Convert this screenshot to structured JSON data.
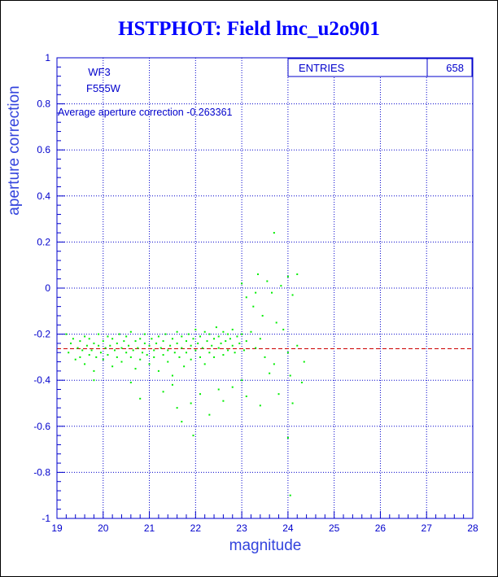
{
  "chart_data": {
    "type": "scatter",
    "title": "HSTPHOT: Field lmc_u2o901",
    "xlabel": "magnitude",
    "ylabel": "aperture correction",
    "xlim": [
      19,
      28
    ],
    "ylim": [
      -1,
      1
    ],
    "xticks": [
      "19",
      "20",
      "21",
      "22",
      "23",
      "24",
      "25",
      "26",
      "27",
      "28"
    ],
    "yticks": [
      "-1",
      "-0.8",
      "-0.6",
      "-0.4",
      "-0.2",
      "0",
      "0.2",
      "0.4",
      "0.6",
      "0.8",
      "1"
    ],
    "grid": true,
    "stats_box": {
      "label": "ENTRIES",
      "value": "658"
    },
    "camera": "WF3",
    "filter": "F555W",
    "average_text": "Average aperture correction -0.263361",
    "average_value": -0.263361,
    "series": [
      {
        "point_count": 658,
        "points": [
          [
            19.2,
            -0.2
          ],
          [
            19.25,
            -0.28
          ],
          [
            19.3,
            -0.24
          ],
          [
            19.35,
            -0.22
          ],
          [
            19.4,
            -0.31
          ],
          [
            19.45,
            -0.26
          ],
          [
            19.5,
            -0.23
          ],
          [
            19.5,
            -0.3
          ],
          [
            19.55,
            -0.27
          ],
          [
            19.6,
            -0.21
          ],
          [
            19.6,
            -0.33
          ],
          [
            19.65,
            -0.25
          ],
          [
            19.7,
            -0.29
          ],
          [
            19.7,
            -0.22
          ],
          [
            19.75,
            -0.27
          ],
          [
            19.8,
            -0.24
          ],
          [
            19.8,
            -0.36
          ],
          [
            19.85,
            -0.3
          ],
          [
            19.9,
            -0.25
          ],
          [
            19.9,
            -0.2
          ],
          [
            19.95,
            -0.28
          ],
          [
            20.0,
            -0.23
          ],
          [
            20.0,
            -0.31
          ],
          [
            20.05,
            -0.26
          ],
          [
            20.1,
            -0.21
          ],
          [
            20.1,
            -0.29
          ],
          [
            20.15,
            -0.25
          ],
          [
            20.2,
            -0.34
          ],
          [
            20.2,
            -0.22
          ],
          [
            20.25,
            -0.27
          ],
          [
            20.3,
            -0.24
          ],
          [
            20.3,
            -0.3
          ],
          [
            20.35,
            -0.2
          ],
          [
            20.4,
            -0.26
          ],
          [
            20.4,
            -0.32
          ],
          [
            20.45,
            -0.23
          ],
          [
            20.5,
            -0.28
          ],
          [
            20.5,
            -0.21
          ],
          [
            20.55,
            -0.25
          ],
          [
            20.6,
            -0.3
          ],
          [
            20.6,
            -0.19
          ],
          [
            20.65,
            -0.27
          ],
          [
            20.7,
            -0.23
          ],
          [
            20.7,
            -0.35
          ],
          [
            20.75,
            -0.26
          ],
          [
            20.8,
            -0.22
          ],
          [
            20.8,
            -0.31
          ],
          [
            20.85,
            -0.28
          ],
          [
            20.9,
            -0.24
          ],
          [
            20.9,
            -0.2
          ],
          [
            20.95,
            -0.29
          ],
          [
            21.0,
            -0.25
          ],
          [
            21.0,
            -0.33
          ],
          [
            21.05,
            -0.22
          ],
          [
            21.1,
            -0.27
          ],
          [
            21.1,
            -0.3
          ],
          [
            21.15,
            -0.24
          ],
          [
            21.2,
            -0.21
          ],
          [
            21.2,
            -0.36
          ],
          [
            21.25,
            -0.26
          ],
          [
            21.3,
            -0.29
          ],
          [
            21.3,
            -0.23
          ],
          [
            21.35,
            -0.2
          ],
          [
            21.4,
            -0.27
          ],
          [
            21.4,
            -0.32
          ],
          [
            21.45,
            -0.25
          ],
          [
            21.5,
            -0.22
          ],
          [
            21.5,
            -0.38
          ],
          [
            21.55,
            -0.28
          ],
          [
            21.6,
            -0.24
          ],
          [
            21.6,
            -0.19
          ],
          [
            21.65,
            -0.3
          ],
          [
            21.7,
            -0.26
          ],
          [
            21.7,
            -0.21
          ],
          [
            21.75,
            -0.34
          ],
          [
            21.8,
            -0.23
          ],
          [
            21.8,
            -0.28
          ],
          [
            21.85,
            -0.2
          ],
          [
            21.9,
            -0.25
          ],
          [
            21.9,
            -0.31
          ],
          [
            21.95,
            -0.22
          ],
          [
            22.0,
            -0.27
          ],
          [
            22.0,
            -0.18
          ],
          [
            22.05,
            -0.24
          ],
          [
            22.1,
            -0.3
          ],
          [
            22.1,
            -0.21
          ],
          [
            22.15,
            -0.26
          ],
          [
            22.2,
            -0.19
          ],
          [
            22.2,
            -0.33
          ],
          [
            22.25,
            -0.23
          ],
          [
            22.3,
            -0.28
          ],
          [
            22.3,
            -0.2
          ],
          [
            22.35,
            -0.25
          ],
          [
            22.4,
            -0.22
          ],
          [
            22.4,
            -0.3
          ],
          [
            22.45,
            -0.17
          ],
          [
            22.5,
            -0.26
          ],
          [
            22.5,
            -0.21
          ],
          [
            22.55,
            -0.24
          ],
          [
            22.6,
            -0.19
          ],
          [
            22.6,
            -0.29
          ],
          [
            22.65,
            -0.23
          ],
          [
            22.7,
            -0.2
          ],
          [
            22.7,
            -0.27
          ],
          [
            22.75,
            -0.22
          ],
          [
            22.8,
            -0.25
          ],
          [
            22.8,
            -0.18
          ],
          [
            22.85,
            -0.28
          ],
          [
            22.9,
            -0.21
          ],
          [
            22.95,
            -0.24
          ],
          [
            23.0,
            -0.2
          ],
          [
            23.05,
            -0.27
          ],
          [
            23.1,
            -0.23
          ],
          [
            23.2,
            -0.19
          ],
          [
            23.3,
            -0.26
          ],
          [
            23.4,
            -0.22
          ],
          [
            23.5,
            -0.3
          ],
          [
            19.8,
            -0.4
          ],
          [
            20.6,
            -0.41
          ],
          [
            20.8,
            -0.48
          ],
          [
            21.3,
            -0.45
          ],
          [
            21.5,
            -0.42
          ],
          [
            21.6,
            -0.52
          ],
          [
            21.7,
            -0.58
          ],
          [
            21.9,
            -0.5
          ],
          [
            21.95,
            -0.64
          ],
          [
            22.1,
            -0.46
          ],
          [
            22.3,
            -0.55
          ],
          [
            22.5,
            -0.44
          ],
          [
            22.6,
            -0.49
          ],
          [
            22.8,
            -0.43
          ],
          [
            23.0,
            -0.4
          ],
          [
            23.1,
            -0.47
          ],
          [
            23.4,
            -0.51
          ],
          [
            23.6,
            -0.37
          ],
          [
            23.7,
            -0.33
          ],
          [
            23.8,
            -0.46
          ],
          [
            24.0,
            -0.28
          ],
          [
            24.05,
            -0.38
          ],
          [
            24.1,
            -0.5
          ],
          [
            24.2,
            -0.25
          ],
          [
            24.3,
            -0.41
          ],
          [
            24.35,
            -0.32
          ],
          [
            24.0,
            -0.65
          ],
          [
            24.05,
            -0.9
          ],
          [
            23.0,
            0.02
          ],
          [
            23.1,
            -0.04
          ],
          [
            23.25,
            -0.08
          ],
          [
            23.35,
            0.06
          ],
          [
            23.45,
            -0.12
          ],
          [
            23.55,
            0.03
          ],
          [
            23.65,
            -0.02
          ],
          [
            23.75,
            -0.15
          ],
          [
            23.85,
            0.01
          ],
          [
            23.9,
            -0.18
          ],
          [
            24.0,
            0.05
          ],
          [
            24.1,
            -0.03
          ],
          [
            24.2,
            0.06
          ],
          [
            23.7,
            0.24
          ],
          [
            23.3,
            -0.02
          ]
        ]
      }
    ]
  }
}
